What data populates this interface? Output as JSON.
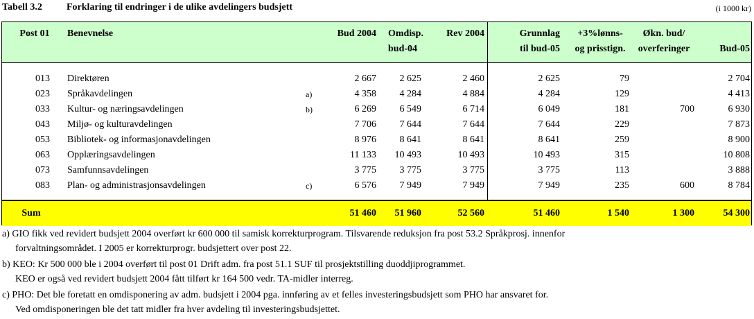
{
  "title": {
    "number": "Tabell 3.2",
    "text": "Forklaring til endringer i de ulike avdelingers budsjett",
    "unit": "(i 1000 kr)"
  },
  "headers": {
    "post": "Post 01",
    "name": "Benevnelse",
    "bud2004": "Bud 2004",
    "omdisp": [
      "Omdisp.",
      "bud-04"
    ],
    "rev2004": "Rev 2004",
    "grunnlag": [
      "Grunnlag",
      "til bud-05"
    ],
    "lonn": [
      "+3%lønns-",
      "og prisstign."
    ],
    "okn": [
      "Økn. bud/",
      "overferinger"
    ],
    "bud05": "Bud-05"
  },
  "rows": [
    {
      "post": "013",
      "name": "Direktøren",
      "note": "",
      "bud2004": "2 667",
      "omdisp": "2 625",
      "rev2004": "2 460",
      "grunnlag": "2 625",
      "lonn": "79",
      "okn": "",
      "bud05": "2 704"
    },
    {
      "post": "023",
      "name": "Språkavdelingen",
      "note": "a)",
      "bud2004": "4 358",
      "omdisp": "4 284",
      "rev2004": "4 884",
      "grunnlag": "4 284",
      "lonn": "129",
      "okn": "",
      "bud05": "4 413"
    },
    {
      "post": "033",
      "name": "Kultur- og næringsavdelingen",
      "note": "b)",
      "bud2004": "6 269",
      "omdisp": "6 549",
      "rev2004": "6 714",
      "grunnlag": "6 049",
      "lonn": "181",
      "okn": "700",
      "bud05": "6 930"
    },
    {
      "post": "043",
      "name": "Miljø- og kulturavdelingen",
      "note": "",
      "bud2004": "7 706",
      "omdisp": "7 644",
      "rev2004": "7 644",
      "grunnlag": "7 644",
      "lonn": "229",
      "okn": "",
      "bud05": "7 873"
    },
    {
      "post": "053",
      "name": "Bibliotek- og informasjonavdelingen",
      "note": "",
      "bud2004": "8 976",
      "omdisp": "8 641",
      "rev2004": "8 641",
      "grunnlag": "8 641",
      "lonn": "259",
      "okn": "",
      "bud05": "8 900"
    },
    {
      "post": "063",
      "name": "Opplæringsavdelingen",
      "note": "",
      "bud2004": "11 133",
      "omdisp": "10 493",
      "rev2004": "10 493",
      "grunnlag": "10 493",
      "lonn": "315",
      "okn": "",
      "bud05": "10 808"
    },
    {
      "post": "073",
      "name": "Samfunnsavdelingen",
      "note": "",
      "bud2004": "3 775",
      "omdisp": "3 775",
      "rev2004": "3 775",
      "grunnlag": "3 775",
      "lonn": "113",
      "okn": "",
      "bud05": "3 888"
    },
    {
      "post": "083",
      "name": "Plan- og administrasjonsavdelingen",
      "note": "c)",
      "bud2004": "6 576",
      "omdisp": "7 949",
      "rev2004": "7 949",
      "grunnlag": "7 949",
      "lonn": "235",
      "okn": "600",
      "bud05": "8 784"
    }
  ],
  "sum": {
    "label": "Sum",
    "bud2004": "51 460",
    "omdisp": "51 960",
    "rev2004": "52 560",
    "grunnlag": "51 460",
    "lonn": "1 540",
    "okn": "1 300",
    "bud05": "54 300"
  },
  "notes": [
    "a) GIO fikk ved revidert budsjett 2004 overført kr 600 000 til samisk korrekturprogram. Tilsvarende reduksjon fra post 53.2 Språkprosj. innenfor",
    "forvaltningsområdet. I 2005 er korrekturprogr. budsjettert over post 22.",
    "b) KEO: Kr 500 000 ble i 2004 overført til post 01 Drift adm. fra post 51.1 SUF til prosjektstilling duoddjiprogrammet.",
    "KEO er også ved revidert budsjett 2004 fått tilført kr 164 500 vedr. TA-midler interreg.",
    "c) PHO: Det ble foretatt en omdisponering av adm. budsjett i 2004 pga. innføring av et felles investeringsbudsjett som PHO har ansvaret for.",
    "Ved omdisponeringen ble det tatt midler fra hver avdeling til investeringsbudsjettet."
  ]
}
